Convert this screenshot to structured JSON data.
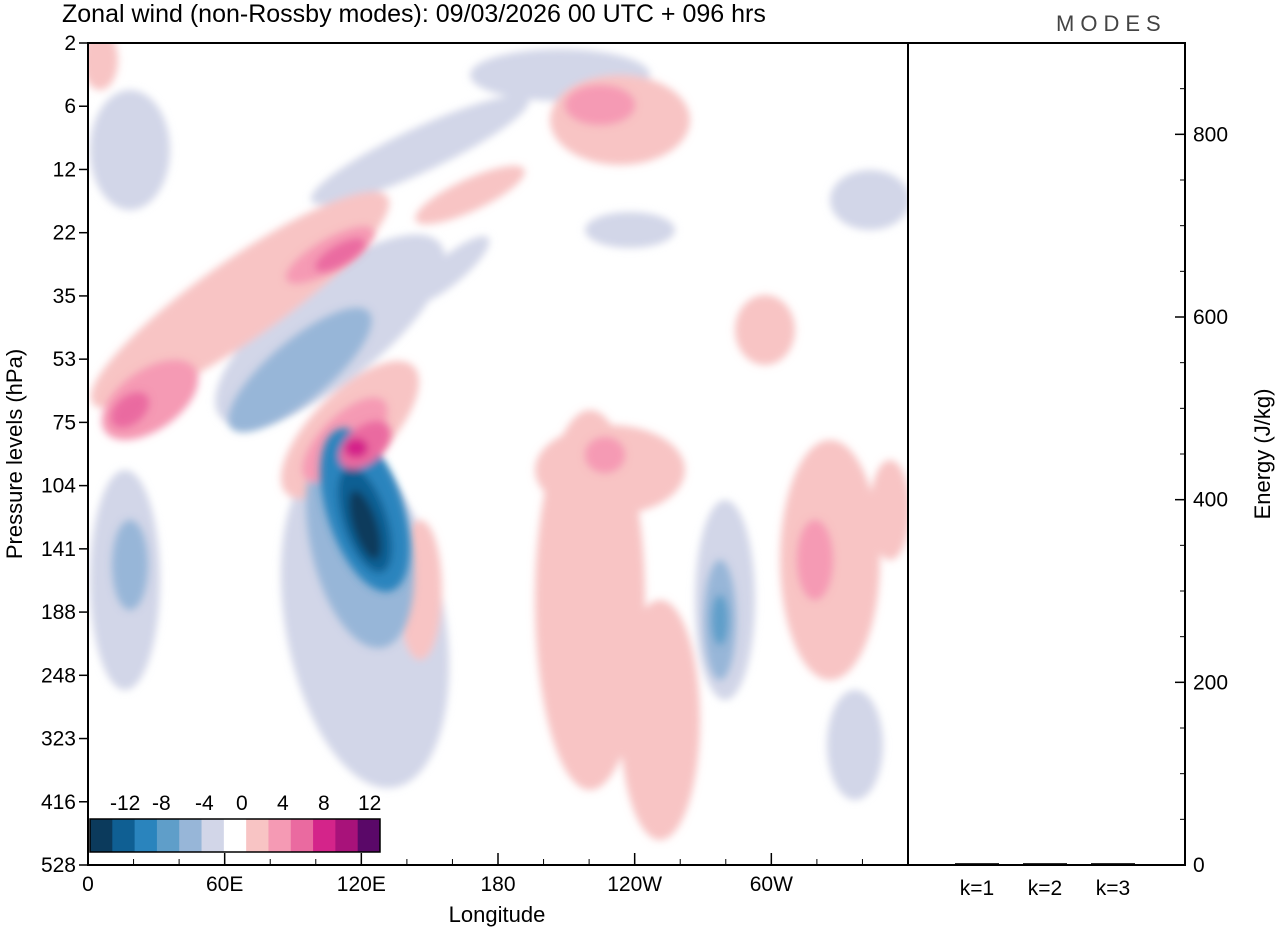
{
  "chart_data": [
    {
      "type": "heatmap",
      "title": "Zonal wind (non-Rossby modes):  09/03/2026  00 UTC  + 096 hrs",
      "xlabel": "Longitude",
      "ylabel": "Pressure levels (hPa)",
      "x_ticks": [
        "0",
        "60E",
        "120E",
        "180",
        "120W",
        "60W"
      ],
      "x_tick_degrees": [
        0,
        60,
        120,
        180,
        240,
        300
      ],
      "xlim": [
        0,
        360
      ],
      "y_ticks": [
        "2",
        "6",
        "12",
        "22",
        "35",
        "53",
        "75",
        "104",
        "141",
        "188",
        "248",
        "323",
        "416",
        "528"
      ],
      "colorbar": {
        "labels": [
          "-12",
          "-8",
          "-4",
          "0",
          "4",
          "8",
          "12"
        ],
        "levels": [
          -14,
          -12,
          -10,
          -8,
          -6,
          -4,
          -2,
          2,
          4,
          6,
          8,
          10,
          12,
          14
        ],
        "colors": [
          "#0b3a5c",
          "#0f5f93",
          "#2a84bd",
          "#5f9ec9",
          "#97b6d8",
          "#d2d6e8",
          "#ffffff",
          "#f8c4c4",
          "#f59ab4",
          "#ea6aa0",
          "#d4248a",
          "#a8127a",
          "#5a0868"
        ]
      },
      "features": [
        {
          "name": "strong negative jet core",
          "lon": 120,
          "level_hPa": 141,
          "value": -14
        },
        {
          "name": "positive core",
          "lon": 116,
          "level_hPa": 90,
          "value": 10
        },
        {
          "name": "positive core",
          "lon": 15,
          "level_hPa": 75,
          "value": 8
        },
        {
          "name": "negative core",
          "lon": 278,
          "level_hPa": 200,
          "value": -8
        }
      ]
    },
    {
      "type": "bar",
      "ylabel": "Energy (J/kg)",
      "categories": [
        "k=1",
        "k=2",
        "k=3"
      ],
      "values": [
        2,
        2,
        2
      ],
      "ylim": [
        0,
        900
      ],
      "y_ticks": [
        "0",
        "200",
        "400",
        "600",
        "800"
      ]
    }
  ],
  "logo": "MODES"
}
